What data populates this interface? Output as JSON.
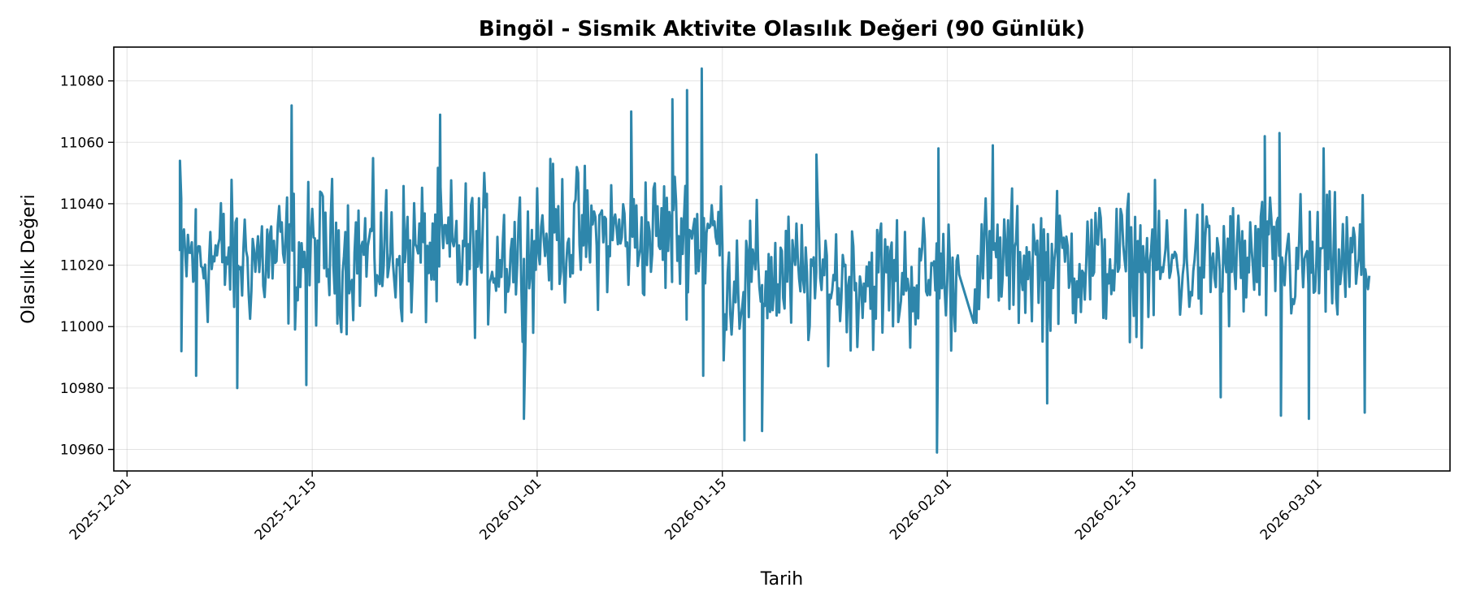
{
  "chart_data": {
    "type": "line",
    "title": "Bingöl - Sismik Aktivite Olasılık Değeri (90 Günlük)",
    "xlabel": "Tarih",
    "ylabel": "Olasılık Değeri",
    "x_range": [
      "2025-11-30",
      "2026-03-11"
    ],
    "ylim": [
      10953,
      11091
    ],
    "x_ticks": [
      "2025-12-01",
      "2025-12-15",
      "2026-01-01",
      "2026-01-15",
      "2026-02-01",
      "2026-02-15",
      "2026-03-01"
    ],
    "y_ticks": [
      10960,
      10980,
      11000,
      11020,
      11040,
      11060,
      11080
    ],
    "grid": true,
    "legend": "none",
    "line_color": "#2e86ab",
    "series": [
      {
        "x_start": "2025-12-05",
        "x_end": "2026-03-05",
        "gap": [
          "2026-02-02",
          "2026-02-03"
        ],
        "segments": [
          {
            "from": "2025-12-05",
            "to": "2025-12-15",
            "low": 10993,
            "high": 11052
          },
          {
            "from": "2025-12-15",
            "to": "2026-01-01",
            "low": 10994,
            "high": 11054
          },
          {
            "from": "2026-01-01",
            "to": "2026-01-15",
            "low": 11002,
            "high": 11058
          },
          {
            "from": "2026-01-15",
            "to": "2026-02-02",
            "low": 10987,
            "high": 11044
          },
          {
            "from": "2026-02-03",
            "to": "2026-02-15",
            "low": 10993,
            "high": 11049
          },
          {
            "from": "2026-02-15",
            "to": "2026-03-05",
            "low": 10992,
            "high": 11048
          }
        ],
        "extremes": [
          {
            "x": "2025-12-05",
            "y": 11054
          },
          {
            "x": "2025-12-05",
            "y": 10992
          },
          {
            "x": "2025-12-06",
            "y": 10984
          },
          {
            "x": "2025-12-09",
            "y": 10980
          },
          {
            "x": "2025-12-13",
            "y": 11072
          },
          {
            "x": "2025-12-14",
            "y": 10981
          },
          {
            "x": "2025-12-24",
            "y": 11069
          },
          {
            "x": "2025-12-31",
            "y": 10970
          },
          {
            "x": "2026-01-08",
            "y": 11070
          },
          {
            "x": "2026-01-11",
            "y": 11074
          },
          {
            "x": "2026-01-12",
            "y": 11077
          },
          {
            "x": "2026-01-13",
            "y": 11084
          },
          {
            "x": "2026-01-13",
            "y": 10984
          },
          {
            "x": "2026-01-16",
            "y": 10963
          },
          {
            "x": "2026-01-18",
            "y": 10966
          },
          {
            "x": "2026-01-22",
            "y": 11056
          },
          {
            "x": "2026-01-31",
            "y": 10959
          },
          {
            "x": "2026-01-31",
            "y": 11058
          },
          {
            "x": "2026-02-04",
            "y": 11059
          },
          {
            "x": "2026-02-08",
            "y": 10975
          },
          {
            "x": "2026-02-21",
            "y": 10977
          },
          {
            "x": "2026-02-25",
            "y": 11062
          },
          {
            "x": "2026-02-26",
            "y": 11063
          },
          {
            "x": "2026-02-26",
            "y": 10971
          },
          {
            "x": "2026-02-28",
            "y": 10970
          },
          {
            "x": "2026-03-01",
            "y": 11058
          },
          {
            "x": "2026-03-04",
            "y": 10972
          }
        ]
      }
    ]
  }
}
